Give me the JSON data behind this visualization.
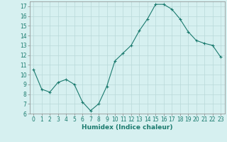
{
  "x": [
    0,
    1,
    2,
    3,
    4,
    5,
    6,
    7,
    8,
    9,
    10,
    11,
    12,
    13,
    14,
    15,
    16,
    17,
    18,
    19,
    20,
    21,
    22,
    23
  ],
  "y": [
    10.5,
    8.5,
    8.2,
    9.2,
    9.5,
    9.0,
    7.2,
    6.3,
    7.0,
    8.8,
    11.4,
    12.2,
    13.0,
    14.5,
    15.7,
    17.2,
    17.2,
    16.7,
    15.7,
    14.4,
    13.5,
    13.2,
    13.0,
    11.8
  ],
  "line_color": "#1a7a6e",
  "marker": "+",
  "marker_size": 3,
  "marker_linewidth": 0.8,
  "line_width": 0.8,
  "bg_color": "#d6f0f0",
  "grid_color": "#b8d8d8",
  "xlabel": "Humidex (Indice chaleur)",
  "ylim": [
    6,
    17.5
  ],
  "yticks": [
    6,
    7,
    8,
    9,
    10,
    11,
    12,
    13,
    14,
    15,
    16,
    17
  ],
  "xticks": [
    0,
    1,
    2,
    3,
    4,
    5,
    6,
    7,
    8,
    9,
    10,
    11,
    12,
    13,
    14,
    15,
    16,
    17,
    18,
    19,
    20,
    21,
    22,
    23
  ],
  "tick_fontsize": 5.5,
  "xlabel_fontsize": 6.5,
  "xlabel_color": "#1a7a6e"
}
